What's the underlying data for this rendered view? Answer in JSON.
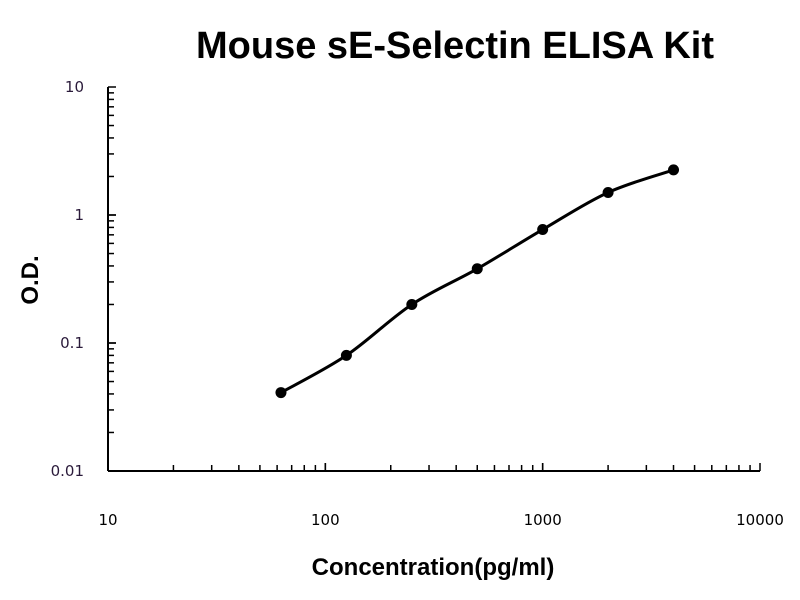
{
  "chart_data": {
    "type": "scatter",
    "title": "Mouse sE-Selectin ELISA Kit",
    "xlabel": "Concentration(pg/ml)",
    "ylabel": "O.D.",
    "x_scale": "log",
    "y_scale": "log",
    "xlim": [
      10,
      10000
    ],
    "ylim": [
      0.01,
      10
    ],
    "x_ticks": [
      "10",
      "100",
      "1000",
      "10000"
    ],
    "y_ticks": [
      "0.01",
      "0.1",
      "1",
      "10"
    ],
    "grid": false,
    "fit_line": "smooth curve through points",
    "series": [
      {
        "x": [
          62.5,
          125,
          250,
          500,
          1000,
          2000,
          4000
        ],
        "y": [
          0.041,
          0.08,
          0.2,
          0.38,
          0.77,
          1.5,
          2.25
        ]
      }
    ],
    "colors": {
      "points": "#000000",
      "line": "#000000"
    }
  }
}
